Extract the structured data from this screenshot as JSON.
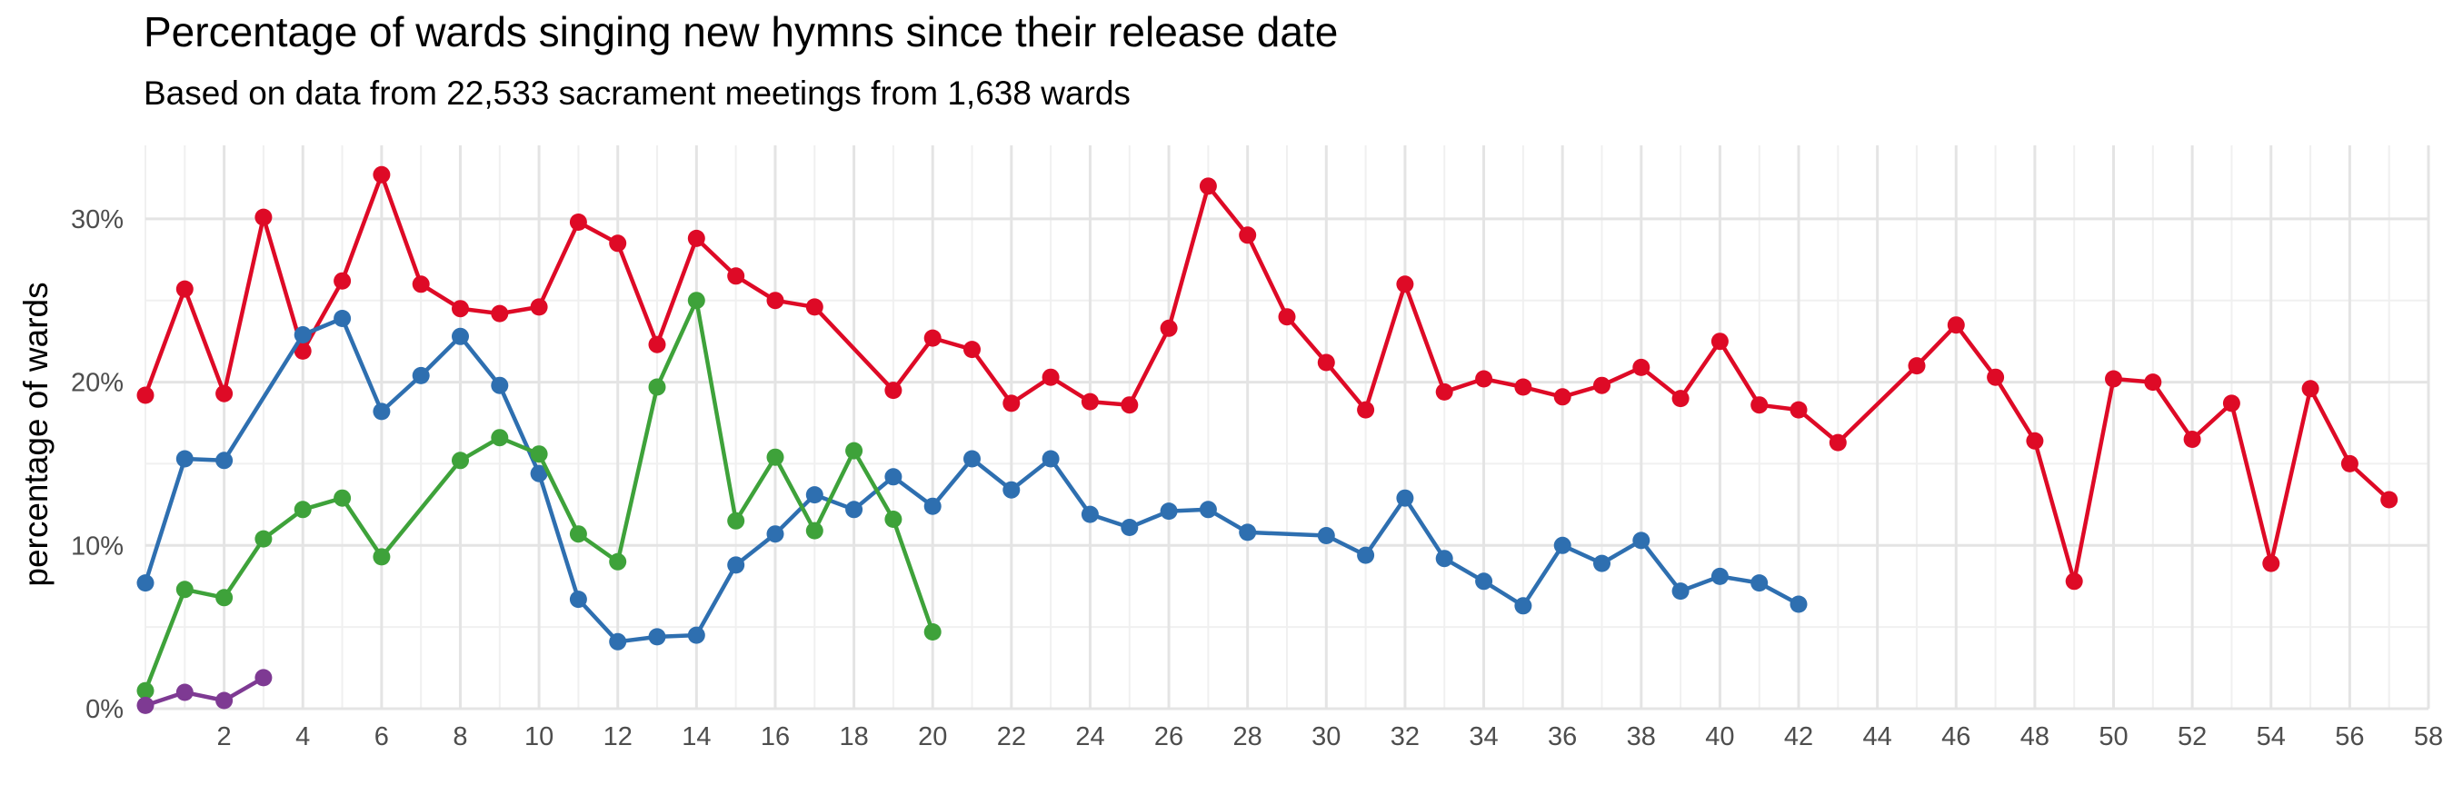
{
  "chart_data": {
    "type": "line",
    "title": "Percentage of wards singing new hymns since their release date",
    "subtitle": "Based on data from 22,533 sacrament meetings from 1,638 wards",
    "xlabel": "",
    "ylabel": "percentage of wards",
    "xlim": [
      0,
      58
    ],
    "ylim": [
      0,
      34.5
    ],
    "x_ticks": [
      2,
      4,
      6,
      8,
      10,
      12,
      14,
      16,
      18,
      20,
      22,
      24,
      26,
      28,
      30,
      32,
      34,
      36,
      38,
      40,
      42,
      44,
      46,
      48,
      50,
      52,
      54,
      56,
      58
    ],
    "y_ticks": [
      0,
      10,
      20,
      30
    ],
    "y_tick_labels": [
      "0%",
      "10%",
      "20%",
      "30%"
    ],
    "grid": true,
    "legend": "none",
    "series": [
      {
        "color": "#de0a26",
        "points": [
          [
            0,
            19.2
          ],
          [
            1,
            25.7
          ],
          [
            2,
            19.3
          ],
          [
            3,
            30.1
          ],
          [
            4,
            21.9
          ],
          [
            5,
            26.2
          ],
          [
            6,
            32.7
          ],
          [
            7,
            26.0
          ],
          [
            8,
            24.5
          ],
          [
            9,
            24.2
          ],
          [
            10,
            24.6
          ],
          [
            11,
            29.8
          ],
          [
            12,
            28.5
          ],
          [
            13,
            22.3
          ],
          [
            14,
            28.8
          ],
          [
            15,
            26.5
          ],
          [
            16,
            25.0
          ],
          [
            17,
            24.6
          ],
          [
            19,
            19.5
          ],
          [
            20,
            22.7
          ],
          [
            21,
            22.0
          ],
          [
            22,
            18.7
          ],
          [
            23,
            20.3
          ],
          [
            24,
            18.8
          ],
          [
            25,
            18.6
          ],
          [
            26,
            23.3
          ],
          [
            27,
            32.0
          ],
          [
            28,
            29.0
          ],
          [
            29,
            24.0
          ],
          [
            30,
            21.2
          ],
          [
            31,
            18.3
          ],
          [
            32,
            26.0
          ],
          [
            33,
            19.4
          ],
          [
            34,
            20.2
          ],
          [
            35,
            19.7
          ],
          [
            36,
            19.1
          ],
          [
            37,
            19.8
          ],
          [
            38,
            20.9
          ],
          [
            39,
            19.0
          ],
          [
            40,
            22.5
          ],
          [
            41,
            18.6
          ],
          [
            42,
            18.3
          ],
          [
            43,
            16.3
          ],
          [
            45,
            21.0
          ],
          [
            46,
            23.5
          ],
          [
            47,
            20.3
          ],
          [
            48,
            16.4
          ],
          [
            49,
            7.8
          ],
          [
            50,
            20.2
          ],
          [
            51,
            20.0
          ],
          [
            52,
            16.5
          ],
          [
            53,
            18.7
          ],
          [
            54,
            8.9
          ],
          [
            55,
            19.6
          ],
          [
            56,
            15.0
          ],
          [
            57,
            12.8
          ]
        ]
      },
      {
        "color": "#2e6fb0",
        "points": [
          [
            0,
            7.7
          ],
          [
            1,
            15.3
          ],
          [
            2,
            15.2
          ],
          [
            4,
            22.9
          ],
          [
            5,
            23.9
          ],
          [
            6,
            18.2
          ],
          [
            7,
            20.4
          ],
          [
            8,
            22.8
          ],
          [
            9,
            19.8
          ],
          [
            10,
            14.4
          ],
          [
            11,
            6.7
          ],
          [
            12,
            4.1
          ],
          [
            13,
            4.4
          ],
          [
            14,
            4.5
          ],
          [
            15,
            8.8
          ],
          [
            16,
            10.7
          ],
          [
            17,
            13.1
          ],
          [
            18,
            12.2
          ],
          [
            19,
            14.2
          ],
          [
            20,
            12.4
          ],
          [
            21,
            15.3
          ],
          [
            22,
            13.4
          ],
          [
            23,
            15.3
          ],
          [
            24,
            11.9
          ],
          [
            25,
            11.1
          ],
          [
            26,
            12.1
          ],
          [
            27,
            12.2
          ],
          [
            28,
            10.8
          ],
          [
            30,
            10.6
          ],
          [
            31,
            9.4
          ],
          [
            32,
            12.9
          ],
          [
            33,
            9.2
          ],
          [
            34,
            7.8
          ],
          [
            35,
            6.3
          ],
          [
            36,
            10.0
          ],
          [
            37,
            8.9
          ],
          [
            38,
            10.3
          ],
          [
            39,
            7.2
          ],
          [
            40,
            8.1
          ],
          [
            41,
            7.7
          ],
          [
            42,
            6.4
          ]
        ]
      },
      {
        "color": "#3ea23a",
        "points": [
          [
            0,
            1.1
          ],
          [
            1,
            7.3
          ],
          [
            2,
            6.8
          ],
          [
            3,
            10.4
          ],
          [
            4,
            12.2
          ],
          [
            5,
            12.9
          ],
          [
            6,
            9.3
          ],
          [
            8,
            15.2
          ],
          [
            9,
            16.6
          ],
          [
            10,
            15.6
          ],
          [
            11,
            10.7
          ],
          [
            12,
            9.0
          ],
          [
            13,
            19.7
          ],
          [
            14,
            25.0
          ],
          [
            15,
            11.5
          ],
          [
            16,
            15.4
          ],
          [
            17,
            10.9
          ],
          [
            18,
            15.8
          ],
          [
            19,
            11.6
          ],
          [
            20,
            4.7
          ]
        ]
      },
      {
        "color": "#7e3a93",
        "points": [
          [
            0,
            0.2
          ],
          [
            1,
            1.0
          ],
          [
            2,
            0.5
          ],
          [
            3,
            1.9
          ]
        ]
      }
    ]
  }
}
